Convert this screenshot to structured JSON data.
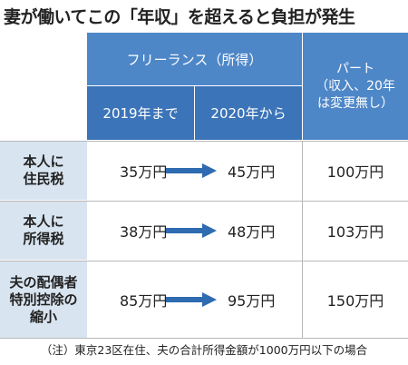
{
  "title": "妻が働いてこの「年収」を超えると負担が発生",
  "header": {
    "freelance": "フリーランス（所得）",
    "until_2019": "2019年まで",
    "from_2020": "2020年から",
    "part": "パート\n（収入、20年\nは変更無し）"
  },
  "rows": [
    {
      "label": "本人に\n住民税",
      "until_2019": "35万円",
      "from_2020": "45万円",
      "part": "100万円"
    },
    {
      "label": "本人に\n所得税",
      "until_2019": "38万円",
      "from_2020": "48万円",
      "part": "103万円"
    },
    {
      "label": "夫の配偶者\n特別控除の\n縮小",
      "until_2019": "85万円",
      "from_2020": "95万円",
      "part": "150万円"
    }
  ],
  "note": "（注）東京23区在住、夫の合計所得金額が1000万円以下の場合",
  "colors": {
    "header_blue": "#4e87c7",
    "header_dark_blue": "#3b74b8",
    "row_header_bg": "#d8e4f0",
    "arrow": "#2f6bb0"
  }
}
